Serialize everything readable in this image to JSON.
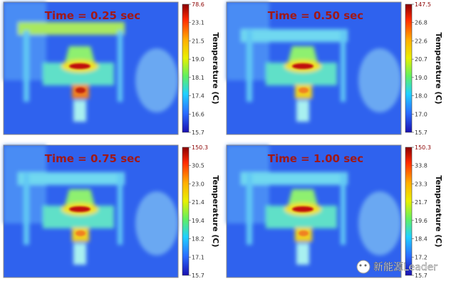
{
  "panels": [
    {
      "title": "Time = 0.25 sec",
      "colorbar_label": "Temperature (C)",
      "ticks": [
        "78.6",
        "23.1",
        "21.5",
        "19.0",
        "18.1",
        "17.4",
        "16.6",
        "15.7"
      ]
    },
    {
      "title": "Time = 0.50 sec",
      "colorbar_label": "Temperature (C)",
      "ticks": [
        "147.5",
        "26.8",
        "22.6",
        "20.7",
        "19.0",
        "18.0",
        "17.0",
        "15.7"
      ]
    },
    {
      "title": "Time = 0.75 sec",
      "colorbar_label": "Temperature (C)",
      "ticks": [
        "150.3",
        "30.5",
        "23.0",
        "21.4",
        "19.4",
        "18.2",
        "17.1",
        "15.7"
      ]
    },
    {
      "title": "Time = 1.00 sec",
      "colorbar_label": "Temperature (C)",
      "ticks": [
        "150.3",
        "33.8",
        "23.3",
        "21.7",
        "19.6",
        "18.4",
        "17.2",
        "15.7"
      ]
    }
  ],
  "watermark": "新能源Leader"
}
